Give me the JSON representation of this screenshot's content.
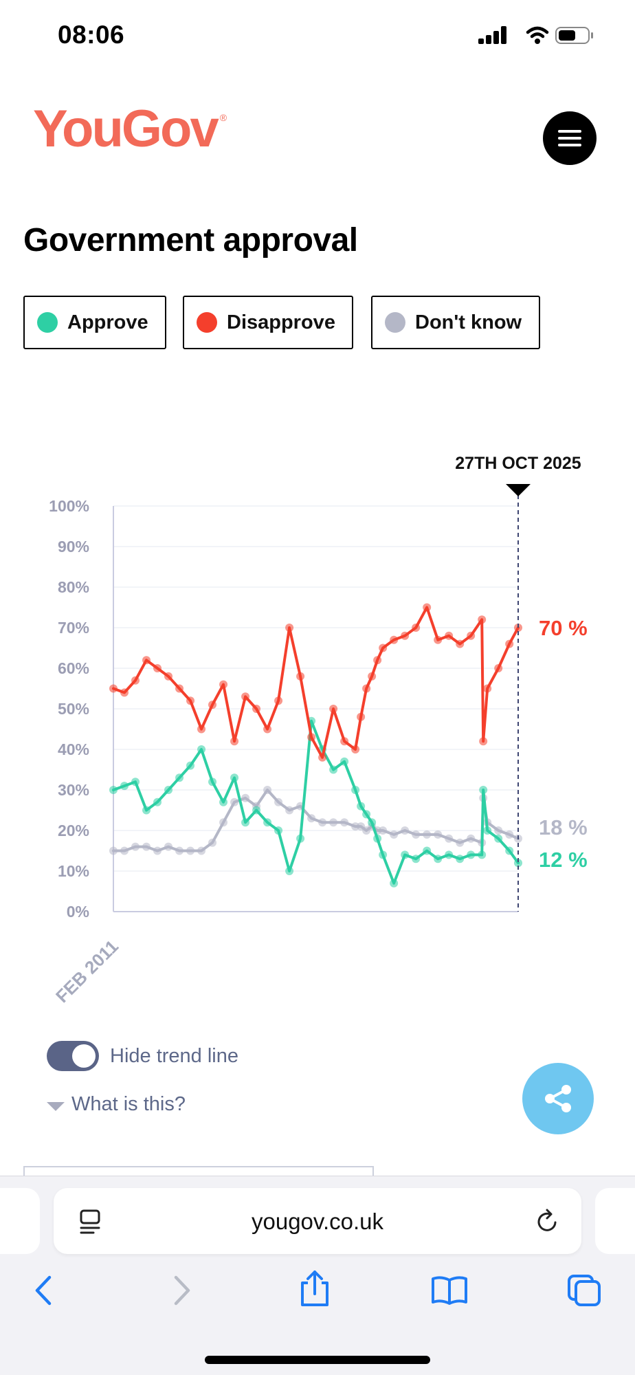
{
  "status_bar": {
    "time": "08:06"
  },
  "header": {
    "logo_text": "YouGov",
    "logo_mark": "®",
    "menu_icon": "hamburger-menu-icon"
  },
  "page": {
    "title": "Government approval"
  },
  "legend": [
    {
      "label": "Approve",
      "color": "#2ecfa4"
    },
    {
      "label": "Disapprove",
      "color": "#f43f2c"
    },
    {
      "label": "Don't know",
      "color": "#b4b7c7"
    }
  ],
  "chart_data": {
    "type": "line",
    "title": "Government approval",
    "y_ticks": [
      "100%",
      "90%",
      "80%",
      "70%",
      "60%",
      "50%",
      "40%",
      "30%",
      "20%",
      "10%",
      "0%"
    ],
    "ylim": [
      0,
      100
    ],
    "x_start_label": "FEB 2011",
    "x_end_marker": "27TH OCT 2025",
    "grid": true,
    "x": [
      2011.1,
      2011.5,
      2011.9,
      2012.3,
      2012.7,
      2013.1,
      2013.5,
      2013.9,
      2014.3,
      2014.7,
      2015.1,
      2015.5,
      2015.9,
      2016.3,
      2016.7,
      2017.1,
      2017.5,
      2017.9,
      2018.3,
      2018.7,
      2019.1,
      2019.5,
      2019.9,
      2020.1,
      2020.3,
      2020.5,
      2020.7,
      2020.9,
      2021.3,
      2021.7,
      2022.1,
      2022.5,
      2022.9,
      2023.3,
      2023.7,
      2024.1,
      2024.5,
      2024.55,
      2024.7,
      2025.1,
      2025.5,
      2025.82
    ],
    "series": [
      {
        "name": "Disapprove",
        "color": "#f43f2c",
        "end_label": "70 %",
        "values": [
          55,
          54,
          57,
          62,
          60,
          58,
          55,
          52,
          45,
          51,
          56,
          42,
          53,
          50,
          45,
          52,
          70,
          58,
          43,
          38,
          50,
          42,
          40,
          48,
          55,
          58,
          62,
          65,
          67,
          68,
          70,
          75,
          67,
          68,
          66,
          68,
          72,
          42,
          55,
          60,
          66,
          70
        ]
      },
      {
        "name": "Approve",
        "color": "#2ecfa4",
        "end_label": "12 %",
        "values": [
          30,
          31,
          32,
          25,
          27,
          30,
          33,
          36,
          40,
          32,
          27,
          33,
          22,
          25,
          22,
          20,
          10,
          18,
          47,
          40,
          35,
          37,
          30,
          26,
          24,
          22,
          18,
          14,
          7,
          14,
          13,
          15,
          13,
          14,
          13,
          14,
          14,
          30,
          20,
          18,
          15,
          12
        ]
      },
      {
        "name": "Don't know",
        "color": "#b4b7c7",
        "end_label": "18 %",
        "values": [
          15,
          15,
          16,
          16,
          15,
          16,
          15,
          15,
          15,
          17,
          22,
          27,
          28,
          26,
          30,
          27,
          25,
          26,
          23,
          22,
          22,
          22,
          21,
          21,
          20,
          21,
          20,
          20,
          19,
          20,
          19,
          19,
          19,
          18,
          17,
          18,
          17,
          28,
          22,
          20,
          19,
          18
        ]
      }
    ]
  },
  "controls": {
    "toggle_label": "Hide trend line",
    "help_label": "What is this?"
  },
  "browser": {
    "url": "yougov.co.uk"
  }
}
